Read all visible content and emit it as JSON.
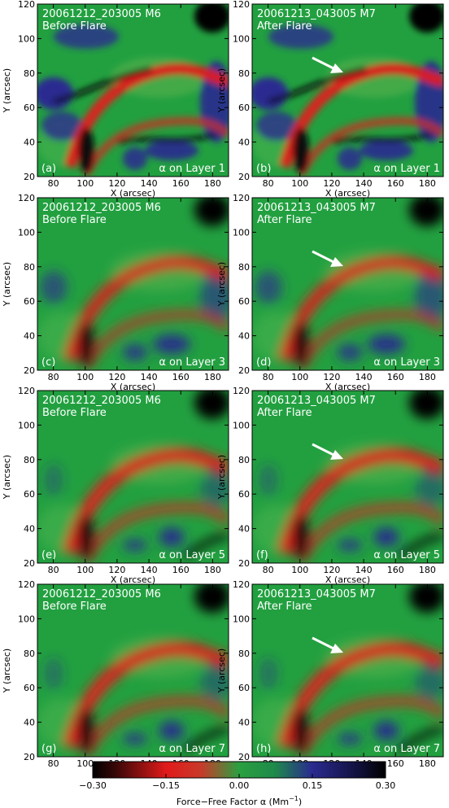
{
  "figure": {
    "panels": [
      {
        "id": "a",
        "tag": "(a)",
        "date_label": "20061212_203005 M6",
        "state_label": "Before Flare",
        "layer_label": "α on Layer 1",
        "layer": 1,
        "arrow": false
      },
      {
        "id": "b",
        "tag": "(b)",
        "date_label": "20061213_043005 M7",
        "state_label": "After Flare",
        "layer_label": "α on Layer 1",
        "layer": 1,
        "arrow": true
      },
      {
        "id": "c",
        "tag": "(c)",
        "date_label": "20061212_203005 M6",
        "state_label": "Before Flare",
        "layer_label": "α on Layer 3",
        "layer": 3,
        "arrow": false
      },
      {
        "id": "d",
        "tag": "(d)",
        "date_label": "20061213_043005 M7",
        "state_label": "After Flare",
        "layer_label": "α on Layer 3",
        "layer": 3,
        "arrow": true
      },
      {
        "id": "e",
        "tag": "(e)",
        "date_label": "20061212_203005 M6",
        "state_label": "Before Flare",
        "layer_label": "α on Layer 5",
        "layer": 5,
        "arrow": false
      },
      {
        "id": "f",
        "tag": "(f)",
        "date_label": "20061213_043005 M7",
        "state_label": "After Flare",
        "layer_label": "α on Layer 5",
        "layer": 5,
        "arrow": true
      },
      {
        "id": "g",
        "tag": "(g)",
        "date_label": "20061212_203005 M6",
        "state_label": "Before Flare",
        "layer_label": "α on Layer 7",
        "layer": 7,
        "arrow": false
      },
      {
        "id": "h",
        "tag": "(h)",
        "date_label": "20061213_043005 M7",
        "state_label": "After Flare",
        "layer_label": "α on Layer 7",
        "layer": 7,
        "arrow": true
      }
    ],
    "x_axis": {
      "label": "X (arcsec)",
      "ticks": [
        80,
        100,
        120,
        140,
        160,
        180
      ],
      "range": [
        70,
        190
      ]
    },
    "y_axis": {
      "label": "Y (arcsec)",
      "ticks": [
        20,
        40,
        60,
        80,
        100,
        120
      ],
      "range": [
        20,
        120
      ]
    },
    "colorbar": {
      "label": "Force−Free Factor α (Mm",
      "label_exp": "−1",
      "label_tail": ")",
      "ticks": [
        "−0.30",
        "−0.15",
        "0.00",
        "0.15",
        "0.30"
      ],
      "range": [
        -0.3,
        0.3
      ],
      "colors": [
        "#000000",
        "#d01818",
        "#1e9a3a",
        "#2a2a8a",
        "#000000"
      ]
    }
  }
}
